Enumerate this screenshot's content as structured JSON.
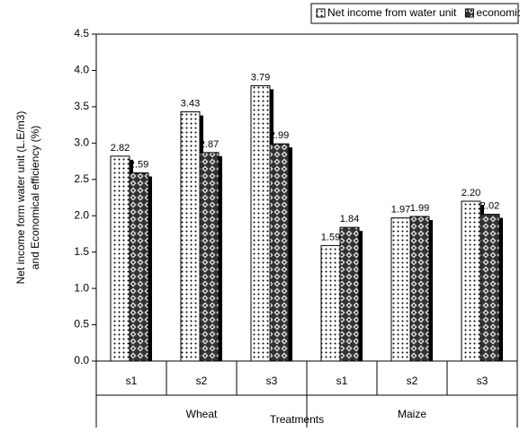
{
  "chart_data": {
    "type": "bar",
    "ylabel": [
      "Net income form water unit (L.E/m3)",
      "and Economical efficiency (%)"
    ],
    "xlabel": "Treatments",
    "categories": [
      "s1",
      "s2",
      "s3",
      "s1",
      "s2",
      "s3"
    ],
    "groups": [
      "Wheat",
      "Maize"
    ],
    "series": [
      {
        "name": "Net income from water unit",
        "color": "#ffffff",
        "pattern": "dots",
        "values": [
          2.82,
          3.43,
          3.79,
          1.59,
          1.97,
          2.2
        ],
        "value_labels": [
          "2.82",
          "3.43",
          "3.79",
          "1.59",
          "1.97",
          "2.20"
        ]
      },
      {
        "name": "economical effeciency",
        "color": "#333333",
        "pattern": "diamonds",
        "values": [
          2.59,
          2.87,
          2.99,
          1.84,
          1.99,
          2.02
        ]
      }
    ],
    "ylim": [
      0,
      4.5
    ],
    "yticks": [
      {
        "value": 0,
        "label": "0.0"
      },
      0.5,
      {
        "value": 1,
        "label": "1.0"
      },
      1.5,
      {
        "value": 2,
        "label": "2.0"
      },
      2.5,
      {
        "value": 3,
        "label": "3.0"
      },
      3.5,
      {
        "value": 4,
        "label": "4.0"
      },
      4.5
    ],
    "legend": "top-right",
    "grid": false
  }
}
